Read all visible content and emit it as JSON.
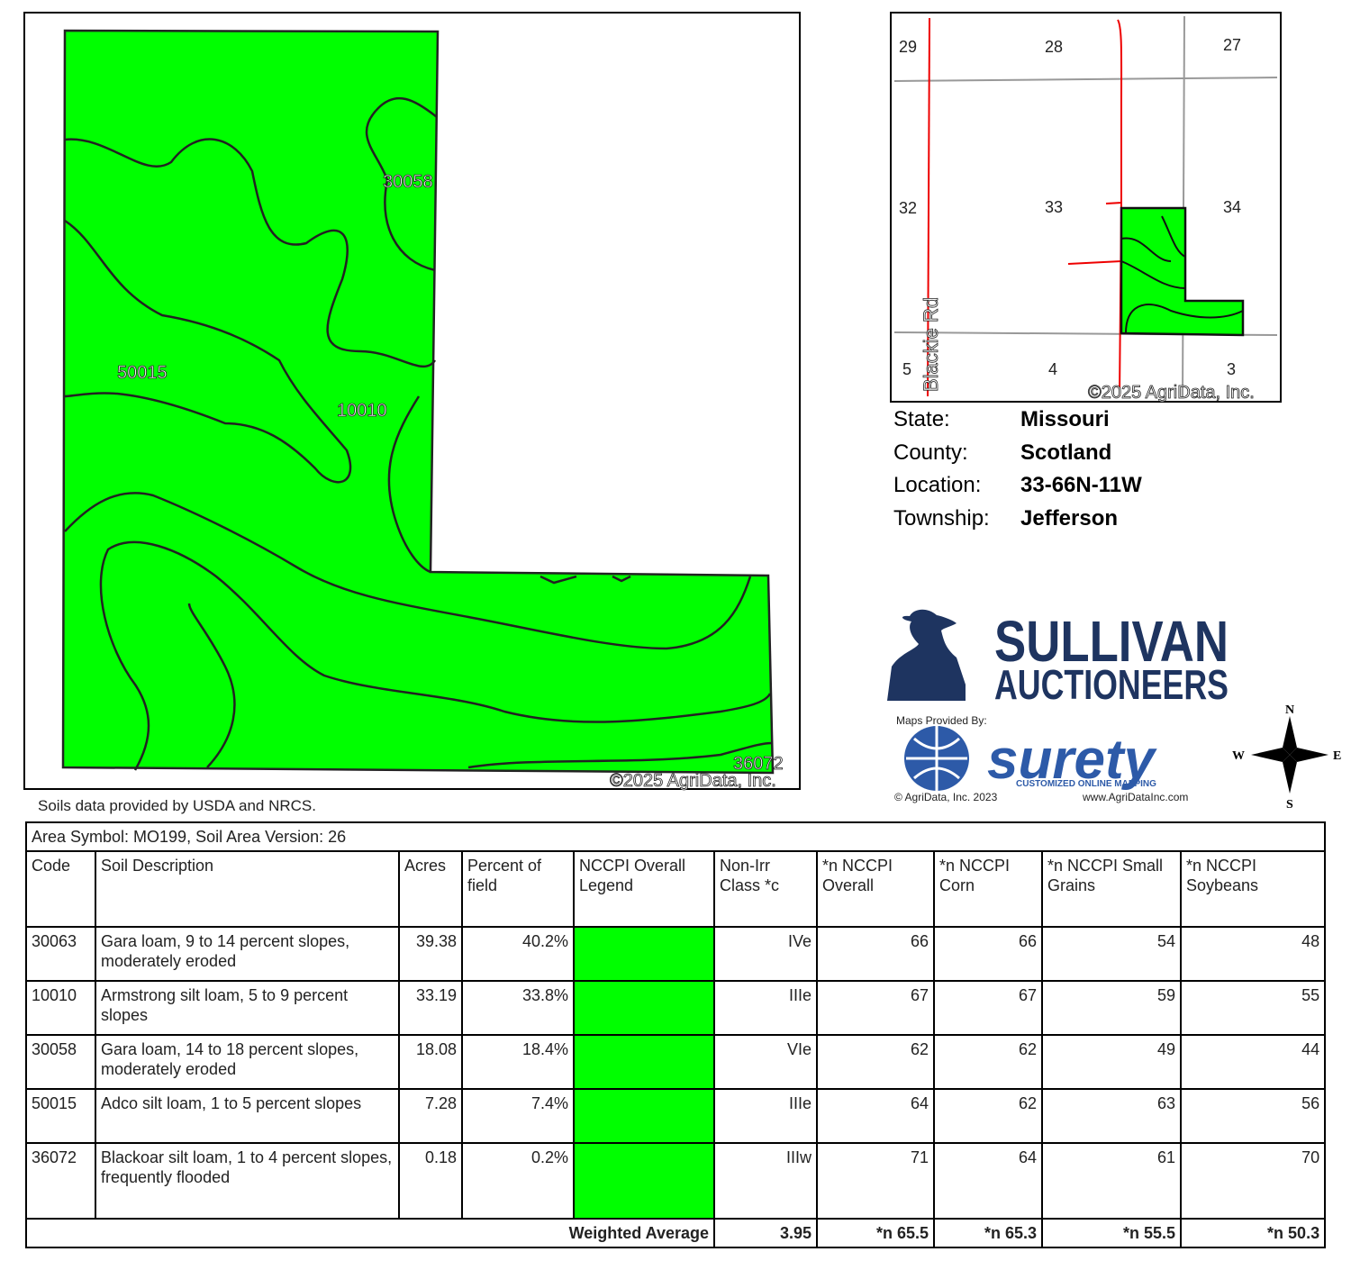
{
  "soil_map": {
    "labels": [
      "30058",
      "50015",
      "10010",
      "36072"
    ],
    "copyright": "©2025 AgriData, Inc.",
    "fill": "#00ff00"
  },
  "locator": {
    "sections": [
      "29",
      "28",
      "27",
      "32",
      "33",
      "34",
      "5",
      "4",
      "3"
    ],
    "road": "Blackie Rd",
    "copyright": "©2025 AgriData, Inc."
  },
  "info": {
    "rows": [
      [
        "State:",
        "Missouri"
      ],
      [
        "County:",
        "Scotland"
      ],
      [
        "Location:",
        "33-66N-11W"
      ],
      [
        "Township:",
        "Jefferson"
      ]
    ]
  },
  "logo": {
    "name": "SULLIVAN",
    "subtitle": "AUCTIONEERS",
    "provided": "Maps Provided By:",
    "brand": "surety",
    "tagline": "CUSTOMIZED ONLINE MAPPING",
    "copyright": "© AgriData, Inc. 2023",
    "url": "www.AgriDataInc.com"
  },
  "compass": {
    "n": "N",
    "s": "S",
    "e": "E",
    "w": "W"
  },
  "source_note": "Soils data provided by USDA and NRCS.",
  "table": {
    "caption": "Area Symbol: MO199, Soil Area Version: 26",
    "headers": [
      "Code",
      "Soil Description",
      "Acres",
      "Percent of field",
      "NCCPI Overall Legend",
      "Non-Irr Class *c",
      "*n NCCPI Overall",
      "*n NCCPI Corn",
      "*n NCCPI Small Grains",
      "*n NCCPI Soybeans"
    ],
    "legend_color": "#00ff00",
    "rows": [
      [
        "30063",
        "Gara loam, 9 to 14 percent slopes, moderately eroded",
        "39.38",
        "40.2%",
        "IVe",
        "66",
        "66",
        "54",
        "48"
      ],
      [
        "10010",
        "Armstrong silt loam, 5 to 9 percent slopes",
        "33.19",
        "33.8%",
        "IIIe",
        "67",
        "67",
        "59",
        "55"
      ],
      [
        "30058",
        "Gara loam, 14 to 18 percent slopes, moderately eroded",
        "18.08",
        "18.4%",
        "VIe",
        "62",
        "62",
        "49",
        "44"
      ],
      [
        "50015",
        "Adco silt loam, 1 to 5 percent slopes",
        "7.28",
        "7.4%",
        "IIIe",
        "64",
        "62",
        "63",
        "56"
      ],
      [
        "36072",
        "Blackoar silt loam, 1 to 4 percent slopes, frequently flooded",
        "0.18",
        "0.2%",
        "IIIw",
        "71",
        "64",
        "61",
        "70"
      ]
    ],
    "footer": [
      "Weighted Average",
      "3.95",
      "*n 65.5",
      "*n 65.3",
      "*n 55.5",
      "*n 50.3"
    ]
  }
}
